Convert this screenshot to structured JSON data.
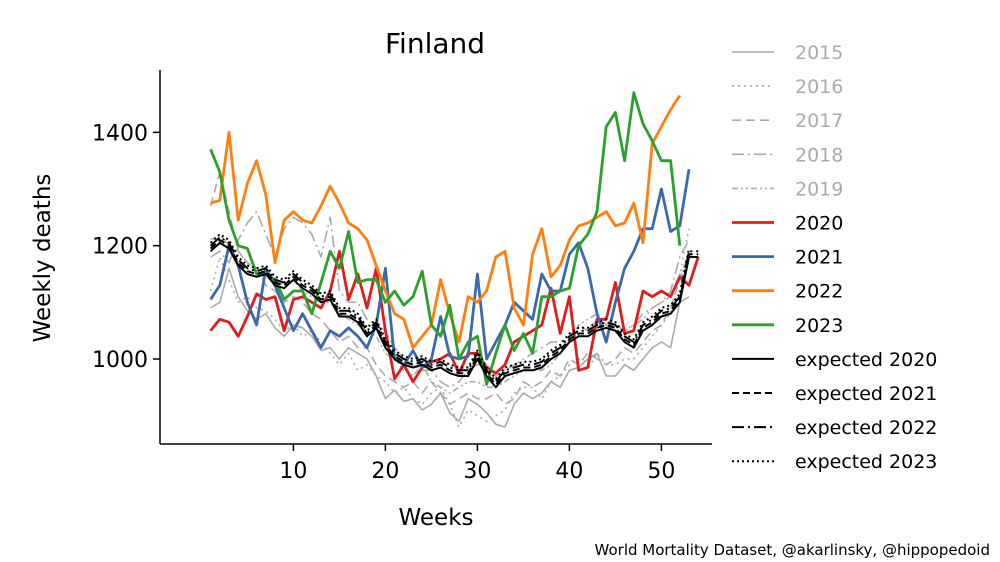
{
  "chart_data": {
    "type": "line",
    "title": "Finland",
    "xlabel": "Weeks",
    "ylabel": "Weekly deaths",
    "xlim": [
      -4.5,
      55.5
    ],
    "ylim": [
      850,
      1510
    ],
    "xticks": [
      10,
      20,
      30,
      40,
      50
    ],
    "yticks": [
      1000,
      1200,
      1400
    ],
    "grid": false,
    "legend_position": "outside-right",
    "credit": "World Mortality Dataset, @akarlinsky, @hippopedoid",
    "series": [
      {
        "name": "2015",
        "color": "#aaaaaa",
        "dash": "solid",
        "width": 1.6,
        "values": [
          1090,
          1100,
          1160,
          1110,
          1085,
          1070,
          1080,
          1055,
          1040,
          1060,
          1055,
          1040,
          1015,
          1020,
          1000,
          1020,
          1010,
          1000,
          970,
          930,
          945,
          925,
          930,
          910,
          920,
          940,
          905,
          890,
          930,
          920,
          905,
          885,
          880,
          920,
          940,
          930,
          940,
          960,
          950,
          980,
          985,
          1000,
          1010,
          970,
          970,
          990,
          980,
          1000,
          1020,
          1030,
          1020,
          1100,
          1110
        ]
      },
      {
        "name": "2016",
        "color": "#aaaaaa",
        "dash": "2,4",
        "width": 1.6,
        "values": [
          1120,
          1180,
          1140,
          1100,
          1110,
          1090,
          1085,
          1070,
          1050,
          1060,
          1040,
          1050,
          1030,
          1010,
          990,
          1010,
          980,
          990,
          970,
          960,
          940,
          950,
          930,
          920,
          940,
          950,
          920,
          880,
          910,
          900,
          890,
          900,
          910,
          940,
          950,
          950,
          930,
          960,
          970,
          990,
          1000,
          980,
          1010,
          990,
          990,
          1000,
          1000,
          1020,
          1040,
          1060,
          1080,
          1150,
          1230
        ]
      },
      {
        "name": "2017",
        "color": "#aaaaaa",
        "dash": "9,5",
        "width": 1.6,
        "values": [
          1270,
          1330,
          1260,
          1190,
          1170,
          1160,
          1130,
          1120,
          1100,
          1110,
          1100,
          1080,
          1070,
          1050,
          1030,
          1040,
          1020,
          1020,
          990,
          970,
          960,
          950,
          960,
          940,
          960,
          940,
          920,
          930,
          940,
          930,
          930,
          940,
          920,
          930,
          960,
          950,
          960,
          980,
          970,
          1000,
          990,
          1010,
          1000,
          990,
          1000,
          1020,
          1010,
          1030,
          1050,
          1060,
          1090,
          1140,
          1190
        ]
      },
      {
        "name": "2018",
        "color": "#aaaaaa",
        "dash": "12,4,2,4",
        "width": 1.6,
        "values": [
          1180,
          1190,
          1170,
          1210,
          1240,
          1260,
          1220,
          1180,
          1230,
          1250,
          1240,
          1220,
          1180,
          1250,
          1120,
          1100,
          1100,
          1070,
          1060,
          1050,
          1020,
          1000,
          990,
          980,
          980,
          960,
          950,
          960,
          980,
          990,
          990,
          970,
          980,
          990,
          1000,
          1010,
          1020,
          1030,
          1030,
          1040,
          1060,
          1050,
          1070,
          1060,
          1060,
          1050,
          1060,
          1080,
          1090,
          1100,
          1120,
          1180,
          1210
        ]
      },
      {
        "name": "2019",
        "color": "#aaaaaa",
        "dash": "6,3,2,3,2,3",
        "width": 1.6,
        "values": [
          1210,
          1220,
          1200,
          1190,
          1170,
          1160,
          1150,
          1140,
          1130,
          1140,
          1120,
          1110,
          1100,
          1100,
          1080,
          1070,
          1060,
          1050,
          1040,
          1010,
          1000,
          980,
          970,
          990,
          960,
          950,
          940,
          950,
          960,
          960,
          950,
          950,
          960,
          970,
          980,
          980,
          980,
          990,
          1010,
          1030,
          1060,
          1070,
          1080,
          1060,
          1050,
          1050,
          1060,
          1070,
          1090,
          1100,
          1110,
          1150,
          1170
        ]
      },
      {
        "name": "2020",
        "color": "#dc1e1e",
        "dash": "solid",
        "width": 2.8,
        "values": [
          1050,
          1070,
          1065,
          1040,
          1075,
          1115,
          1105,
          1110,
          1050,
          1105,
          1110,
          1100,
          1090,
          1120,
          1190,
          1105,
          1150,
          1090,
          1160,
          1050,
          965,
          990,
          960,
          985,
          995,
          1000,
          1010,
          975,
          1010,
          1010,
          985,
          975,
          990,
          1030,
          1040,
          1050,
          1060,
          1125,
          1045,
          1110,
          980,
          985,
          1070,
          1070,
          1135,
          1045,
          1050,
          1120,
          1110,
          1120,
          1110,
          1145,
          1130,
          1180
        ]
      },
      {
        "name": "2021",
        "color": "#3a69ad",
        "dash": "solid",
        "width": 2.8,
        "values": [
          1105,
          1130,
          1200,
          1165,
          1100,
          1060,
          1160,
          1130,
          1090,
          1050,
          1080,
          1050,
          1020,
          1050,
          1040,
          1055,
          1040,
          1020,
          1060,
          1160,
          1000,
          990,
          1015,
          985,
          1000,
          1075,
          1005,
          1000,
          1005,
          1150,
          1000,
          1030,
          1060,
          1100,
          1085,
          1070,
          1150,
          1120,
          1120,
          1185,
          1205,
          1160,
          1080,
          1030,
          1100,
          1160,
          1190,
          1230,
          1230,
          1300,
          1225,
          1235,
          1335
        ]
      },
      {
        "name": "2022",
        "color": "#ff7f0e",
        "dash": "solid",
        "width": 2.8,
        "values": [
          1275,
          1280,
          1400,
          1245,
          1310,
          1350,
          1290,
          1170,
          1245,
          1260,
          1245,
          1240,
          1270,
          1305,
          1275,
          1240,
          1230,
          1210,
          1165,
          1120,
          1080,
          1070,
          1020,
          1040,
          1060,
          1140,
          1080,
          1030,
          1110,
          1100,
          1120,
          1180,
          1190,
          1090,
          1060,
          1185,
          1230,
          1145,
          1165,
          1210,
          1235,
          1240,
          1250,
          1260,
          1235,
          1240,
          1275,
          1205,
          1380,
          1410,
          1440,
          1465
        ]
      },
      {
        "name": "2023",
        "color": "#2ca02c",
        "dash": "solid",
        "width": 2.8,
        "values": [
          1370,
          1330,
          1245,
          1200,
          1195,
          1150,
          1150,
          1140,
          1105,
          1120,
          1120,
          1080,
          1135,
          1190,
          1160,
          1225,
          1135,
          1140,
          1140,
          1100,
          1120,
          1095,
          1110,
          1155,
          1060,
          1040,
          1095,
          1000,
          1030,
          1040,
          955,
          1010,
          1060,
          1015,
          1045,
          1010,
          1110,
          1110,
          1120,
          1125,
          1200,
          1220,
          1260,
          1410,
          1435,
          1350,
          1470,
          1415,
          1385,
          1350,
          1350,
          1200
        ]
      },
      {
        "name": "expected 2020",
        "color": "#000000",
        "dash": "solid",
        "width": 2.0,
        "values": [
          1190,
          1205,
          1195,
          1165,
          1150,
          1145,
          1150,
          1130,
          1125,
          1140,
          1125,
          1115,
          1100,
          1105,
          1075,
          1075,
          1065,
          1040,
          1055,
          1020,
          1000,
          990,
          985,
          990,
          980,
          985,
          975,
          970,
          970,
          1000,
          970,
          950,
          970,
          975,
          980,
          980,
          985,
          1000,
          1010,
          1030,
          1040,
          1040,
          1050,
          1055,
          1050,
          1030,
          1020,
          1050,
          1060,
          1075,
          1080,
          1100,
          1180,
          1180
        ]
      },
      {
        "name": "expected 2021",
        "color": "#000000",
        "dash": "7,4",
        "width": 2.0,
        "values": [
          1195,
          1210,
          1200,
          1170,
          1155,
          1150,
          1155,
          1135,
          1130,
          1145,
          1130,
          1120,
          1105,
          1110,
          1080,
          1080,
          1070,
          1045,
          1060,
          1025,
          1005,
          995,
          990,
          995,
          985,
          990,
          980,
          975,
          975,
          1005,
          975,
          955,
          975,
          980,
          985,
          985,
          990,
          1005,
          1015,
          1035,
          1045,
          1045,
          1055,
          1060,
          1055,
          1035,
          1025,
          1055,
          1065,
          1080,
          1085,
          1105,
          1185,
          1185
        ]
      },
      {
        "name": "expected 2022",
        "color": "#000000",
        "dash": "12,4,2,4",
        "width": 2.0,
        "values": [
          1200,
          1215,
          1205,
          1175,
          1160,
          1155,
          1160,
          1140,
          1135,
          1150,
          1135,
          1125,
          1110,
          1115,
          1085,
          1085,
          1075,
          1050,
          1065,
          1030,
          1010,
          1000,
          995,
          1000,
          990,
          995,
          985,
          980,
          980,
          1010,
          980,
          960,
          980,
          985,
          990,
          990,
          995,
          1010,
          1020,
          1040,
          1050,
          1050,
          1060,
          1065,
          1060,
          1040,
          1030,
          1060,
          1070,
          1085,
          1090,
          1110,
          1190,
          1190
        ]
      },
      {
        "name": "expected 2023",
        "color": "#000000",
        "dash": "2,3",
        "width": 2.0,
        "values": [
          1205,
          1220,
          1210,
          1180,
          1165,
          1160,
          1165,
          1145,
          1140,
          1155,
          1140,
          1130,
          1115,
          1120,
          1090,
          1090,
          1080,
          1055,
          1070,
          1035,
          1015,
          1005,
          1000,
          1005,
          995,
          1000,
          990,
          985,
          985,
          1015,
          985,
          965,
          985,
          990,
          995,
          995,
          1000,
          1015,
          1025,
          1045,
          1055,
          1055,
          1065,
          1070,
          1065,
          1045,
          1035,
          1065,
          1075,
          1090,
          1095,
          1115,
          1195
        ]
      }
    ]
  }
}
